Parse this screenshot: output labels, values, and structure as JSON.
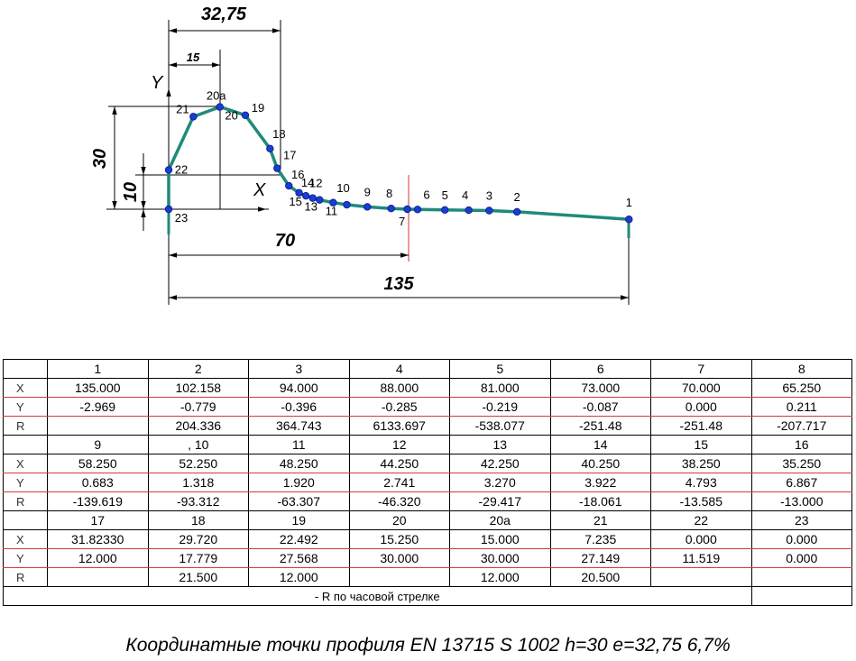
{
  "drawing": {
    "dims": {
      "top_width": "32,75",
      "inner_width": "15",
      "height_total": "30",
      "height_lower": "10",
      "span_70": "70",
      "span_135": "135"
    },
    "axes": {
      "y": "Y",
      "x": "X"
    },
    "colors": {
      "profile": "#1f8a7a",
      "points": "#1a3cd6",
      "marker": "#d43030"
    }
  },
  "points": [
    {
      "label": "1",
      "x": 135.0,
      "y": -2.969
    },
    {
      "label": "2",
      "x": 102.158,
      "y": -0.779
    },
    {
      "label": "3",
      "x": 94.0,
      "y": -0.396
    },
    {
      "label": "4",
      "x": 88.0,
      "y": -0.285
    },
    {
      "label": "5",
      "x": 81.0,
      "y": -0.219
    },
    {
      "label": "6",
      "x": 73.0,
      "y": -0.087
    },
    {
      "label": "7",
      "x": 70.0,
      "y": 0.0
    },
    {
      "label": "8",
      "x": 65.25,
      "y": 0.211
    },
    {
      "label": "9",
      "x": 58.25,
      "y": 0.683
    },
    {
      "label": "10",
      "x": 52.25,
      "y": 1.318
    },
    {
      "label": "11",
      "x": 48.25,
      "y": 1.92
    },
    {
      "label": "12",
      "x": 44.25,
      "y": 2.741
    },
    {
      "label": "13",
      "x": 42.25,
      "y": 3.27
    },
    {
      "label": "14",
      "x": 40.25,
      "y": 3.922
    },
    {
      "label": "15",
      "x": 38.25,
      "y": 4.793
    },
    {
      "label": "16",
      "x": 35.25,
      "y": 6.867
    },
    {
      "label": "17",
      "x": 31.8233,
      "y": 12.0
    },
    {
      "label": "18",
      "x": 29.72,
      "y": 17.779
    },
    {
      "label": "19",
      "x": 22.492,
      "y": 27.568
    },
    {
      "label": "20",
      "x": 15.25,
      "y": 30.0
    },
    {
      "label": "20a",
      "x": 15.0,
      "y": 30.0
    },
    {
      "label": "21",
      "x": 7.235,
      "y": 27.149
    },
    {
      "label": "22",
      "x": 0.0,
      "y": 11.519
    },
    {
      "label": "23",
      "x": 0.0,
      "y": 0.0
    }
  ],
  "table": {
    "row_labels": {
      "x": "X",
      "y": "Y",
      "r": "R"
    },
    "blocks": [
      {
        "headers": [
          "1",
          "2",
          "3",
          "4",
          "5",
          "6",
          "7",
          "8"
        ],
        "x": [
          "135.000",
          "102.158",
          "94.000",
          "88.000",
          "81.000",
          "73.000",
          "70.000",
          "65.250"
        ],
        "y": [
          "-2.969",
          "-0.779",
          "-0.396",
          "-0.285",
          "-0.219",
          "-0.087",
          "0.000",
          "0.211"
        ],
        "r": [
          "",
          "204.336",
          "364.743",
          "6133.697",
          "-538.077",
          "-251.48",
          "-251.48",
          "-207.717"
        ]
      },
      {
        "headers": [
          "9",
          ", 10",
          "11",
          "12",
          "13",
          "14",
          "15",
          "16"
        ],
        "x": [
          "58.250",
          "52.250",
          "48.250",
          "44.250",
          "42.250",
          "40.250",
          "38.250",
          "35.250"
        ],
        "y": [
          "0.683",
          "1.318",
          "1.920",
          "2.741",
          "3.270",
          "3.922",
          "4.793",
          "6.867"
        ],
        "r": [
          "-139.619",
          "-93.312",
          "-63.307",
          "-46.320",
          "-29.417",
          "-18.061",
          "-13.585",
          "-13.000"
        ]
      },
      {
        "headers": [
          "17",
          "18",
          "19",
          "20",
          "20a",
          "21",
          "22",
          "23"
        ],
        "x": [
          "31.82330",
          "29.720",
          "22.492",
          "15.250",
          "15.000",
          "7.235",
          "0.000",
          "0.000"
        ],
        "y": [
          "12.000",
          "17.779",
          "27.568",
          "30.000",
          "30.000",
          "27.149",
          "11.519",
          "0.000"
        ],
        "r": [
          "",
          "21.500",
          "12.000",
          "",
          "12.000",
          "20.500",
          "",
          ""
        ]
      }
    ],
    "note": "- R по часовой стрелке"
  },
  "caption": "Координатные точки профиля EN 13715 S 1002 h=30 e=32,75  6,7%"
}
